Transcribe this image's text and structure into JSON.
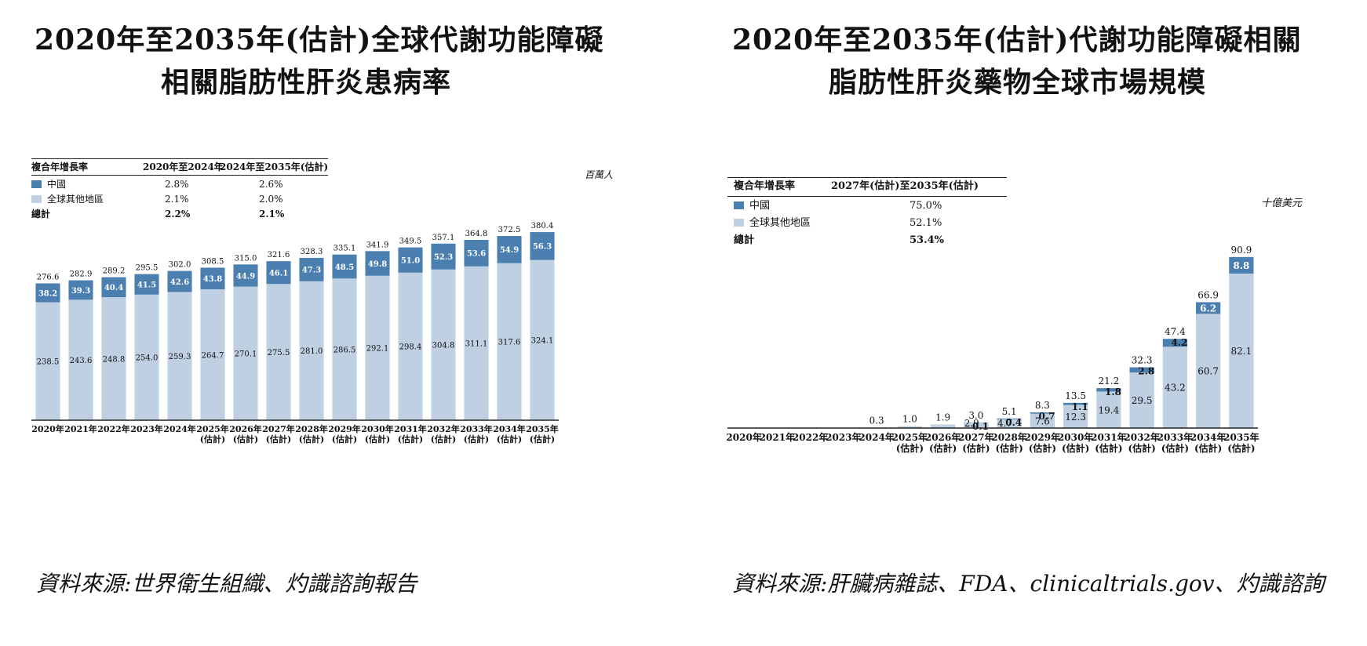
{
  "colors": {
    "china": "#4a7fb0",
    "rest_of_world": "#bed0e2",
    "axis": "#222222"
  },
  "left": {
    "title_line1": "2020年至2035年(估計)全球代謝功能障礙",
    "title_line2": "相關脂肪性肝炎患病率",
    "unit": "百萬人",
    "cagr": {
      "header": [
        "複合年增長率",
        "2020年至2024年",
        "2024年至2035年(估計)"
      ],
      "rows": [
        {
          "label": "中國",
          "values": [
            "2.8%",
            "2.6%"
          ]
        },
        {
          "label": "全球其他地區",
          "values": [
            "2.1%",
            "2.0%"
          ]
        },
        {
          "label": "總計",
          "values": [
            "2.2%",
            "2.1%"
          ]
        }
      ]
    },
    "source": "資料來源:世界衛生組織、灼識諮詢報告"
  },
  "right": {
    "title_line1": "2020年至2035年(估計)代謝功能障礙相關",
    "title_line2": "脂肪性肝炎藥物全球市場規模",
    "unit": "十億美元",
    "cagr": {
      "header": [
        "複合年增長率",
        "2027年(估計)至2035年(估計)"
      ],
      "rows": [
        {
          "label": "中國",
          "values": [
            "75.0%"
          ]
        },
        {
          "label": "全球其他地區",
          "values": [
            "52.1%"
          ]
        },
        {
          "label": "總計",
          "values": [
            "53.4%"
          ]
        }
      ]
    },
    "source": "資料來源:肝臟病雜誌、FDA、clinicaltrials.gov、灼識諮詢"
  },
  "chart_data": [
    {
      "type": "bar",
      "stacked": true,
      "title": "2020年至2035年(估計)全球代謝功能障礙相關脂肪性肝炎患病率",
      "unit": "百萬人",
      "categories": [
        "2020年",
        "2021年",
        "2022年",
        "2023年",
        "2024年",
        "2025年(估計)",
        "2026年(估計)",
        "2027年(估計)",
        "2028年(估計)",
        "2029年(估計)",
        "2030年(估計)",
        "2031年(估計)",
        "2032年(估計)",
        "2033年(估計)",
        "2034年(估計)",
        "2035年(估計)"
      ],
      "series": [
        {
          "name": "全球其他地區",
          "values": [
            238.5,
            243.6,
            248.8,
            254.0,
            259.3,
            264.7,
            270.1,
            275.5,
            281.0,
            286.5,
            292.1,
            298.4,
            304.8,
            311.1,
            317.6,
            324.1
          ]
        },
        {
          "name": "中國",
          "values": [
            38.2,
            39.3,
            40.4,
            41.5,
            42.6,
            43.8,
            44.9,
            46.1,
            47.3,
            48.5,
            49.8,
            51.0,
            52.3,
            53.6,
            54.9,
            56.3
          ]
        }
      ],
      "totals": [
        276.6,
        282.9,
        289.2,
        295.5,
        302.0,
        308.5,
        315.0,
        321.6,
        328.3,
        335.1,
        341.9,
        349.5,
        357.1,
        364.8,
        372.5,
        380.4
      ],
      "total_labels": [
        "276.6",
        "282.9",
        "289.2",
        "295.5",
        "302.0",
        "308.5",
        "315.0",
        "321.6",
        "328.3",
        "335.1",
        "341.9",
        "349.5",
        "357.1",
        "364.8",
        "372.5",
        "380.4"
      ],
      "row_labels": [
        "238.5",
        "243.6",
        "248.8",
        "254.0",
        "259.3",
        "264.7",
        "270.1",
        "275.5",
        "281.0",
        "286.5",
        "292.1",
        "298.4",
        "304.8",
        "311.1",
        "317.6",
        "324.1"
      ],
      "cn_labels": [
        "38.2",
        "39.3",
        "40.4",
        "41.5",
        "42.6",
        "43.8",
        "44.9",
        "46.1",
        "47.3",
        "48.5",
        "49.8",
        "51.0",
        "52.3",
        "53.6",
        "54.9",
        "56.3"
      ],
      "ylim": [
        0,
        390
      ],
      "grid": false,
      "legend": "top-left"
    },
    {
      "type": "bar",
      "stacked": true,
      "title": "2020年至2035年(估計)代謝功能障礙相關脂肪性肝炎藥物全球市場規模",
      "unit": "十億美元",
      "categories": [
        "2020年",
        "2021年",
        "2022年",
        "2023年",
        "2024年",
        "2025年(估計)",
        "2026年(估計)",
        "2027年(估計)",
        "2028年(估計)",
        "2029年(估計)",
        "2030年(估計)",
        "2031年(估計)",
        "2032年(估計)",
        "2033年(估計)",
        "2034年(估計)",
        "2035年(估計)"
      ],
      "series": [
        {
          "name": "全球其他地區",
          "values": [
            0,
            0,
            0,
            0,
            0.3,
            1.0,
            1.9,
            2.9,
            4.7,
            7.6,
            12.3,
            19.4,
            29.5,
            43.2,
            60.7,
            82.1
          ]
        },
        {
          "name": "中國",
          "values": [
            0,
            0,
            0,
            0,
            0,
            0,
            0,
            0.1,
            0.4,
            0.7,
            1.1,
            1.8,
            2.8,
            4.2,
            6.2,
            8.8
          ]
        }
      ],
      "totals": [
        0,
        0,
        0,
        0,
        0.3,
        1.0,
        1.9,
        3.0,
        5.1,
        8.3,
        13.5,
        21.2,
        32.3,
        47.4,
        66.9,
        90.9
      ],
      "total_labels": [
        "",
        "",
        "",
        "",
        "0.3",
        "1.0",
        "1.9",
        "3.0",
        "5.1",
        "8.3",
        "13.5",
        "21.2",
        "32.3",
        "47.4",
        "66.9",
        "90.9"
      ],
      "row_labels": [
        "",
        "",
        "",
        "",
        "",
        "",
        "",
        "2.9",
        "4.7",
        "7.6",
        "12.3",
        "19.4",
        "29.5",
        "43.2",
        "60.7",
        "82.1"
      ],
      "cn_labels": [
        "",
        "",
        "",
        "",
        "",
        "",
        "",
        "0.1",
        "0.4",
        "0.7",
        "1.1",
        "1.8",
        "2.8",
        "4.2",
        "6.2",
        "8.8"
      ],
      "ylim": [
        0,
        95
      ],
      "grid": false,
      "legend": "top-left"
    }
  ]
}
